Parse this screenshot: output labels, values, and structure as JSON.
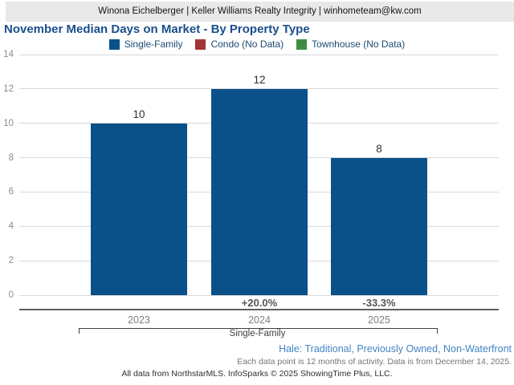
{
  "header": {
    "contact_line": "Winona Eichelberger | Keller Williams Realty Integrity | winhometeam@kw.com"
  },
  "chart": {
    "title": "November Median Days on Market - By Property Type",
    "legend": [
      {
        "label": "Single-Family",
        "color": "#0a518a"
      },
      {
        "label": "Condo (No Data)",
        "color": "#a23535"
      },
      {
        "label": "Townhouse (No Data)",
        "color": "#3e8e41"
      }
    ]
  },
  "chart_data": {
    "type": "bar",
    "categories": [
      "2023",
      "2024",
      "2025"
    ],
    "series": [
      {
        "name": "Single-Family",
        "color": "#0a518a",
        "values": [
          10,
          12,
          8
        ]
      }
    ],
    "value_labels": [
      "10",
      "12",
      "8"
    ],
    "pct_change_labels": [
      "",
      "+20.0%",
      "-33.3%"
    ],
    "group_label": "Single-Family",
    "title": "November Median Days on Market - By Property Type",
    "xlabel": "",
    "ylabel": "",
    "ylim": [
      0,
      14
    ],
    "yticks": [
      0,
      2,
      4,
      6,
      8,
      10,
      12,
      14
    ],
    "grid": true,
    "legend_position": "top",
    "legend_entries": [
      "Single-Family",
      "Condo (No Data)",
      "Townhouse (No Data)"
    ]
  },
  "footnotes": {
    "filter_note": "Hale: Traditional, Previously Owned, Non-Waterfront",
    "data_note": "Each data point is 12 months of activity. Data is from December 14, 2025.",
    "attribution": "All data from NorthstarMLS. InfoSparks © 2025 ShowingTime Plus, LLC."
  },
  "colors": {
    "bar_blue": "#0a518a",
    "condo_red": "#a23535",
    "townhouse_green": "#3e8e41",
    "title_blue": "#1a4f8c",
    "note_blue": "#4285c4",
    "header_bg": "#e9e9e9"
  }
}
